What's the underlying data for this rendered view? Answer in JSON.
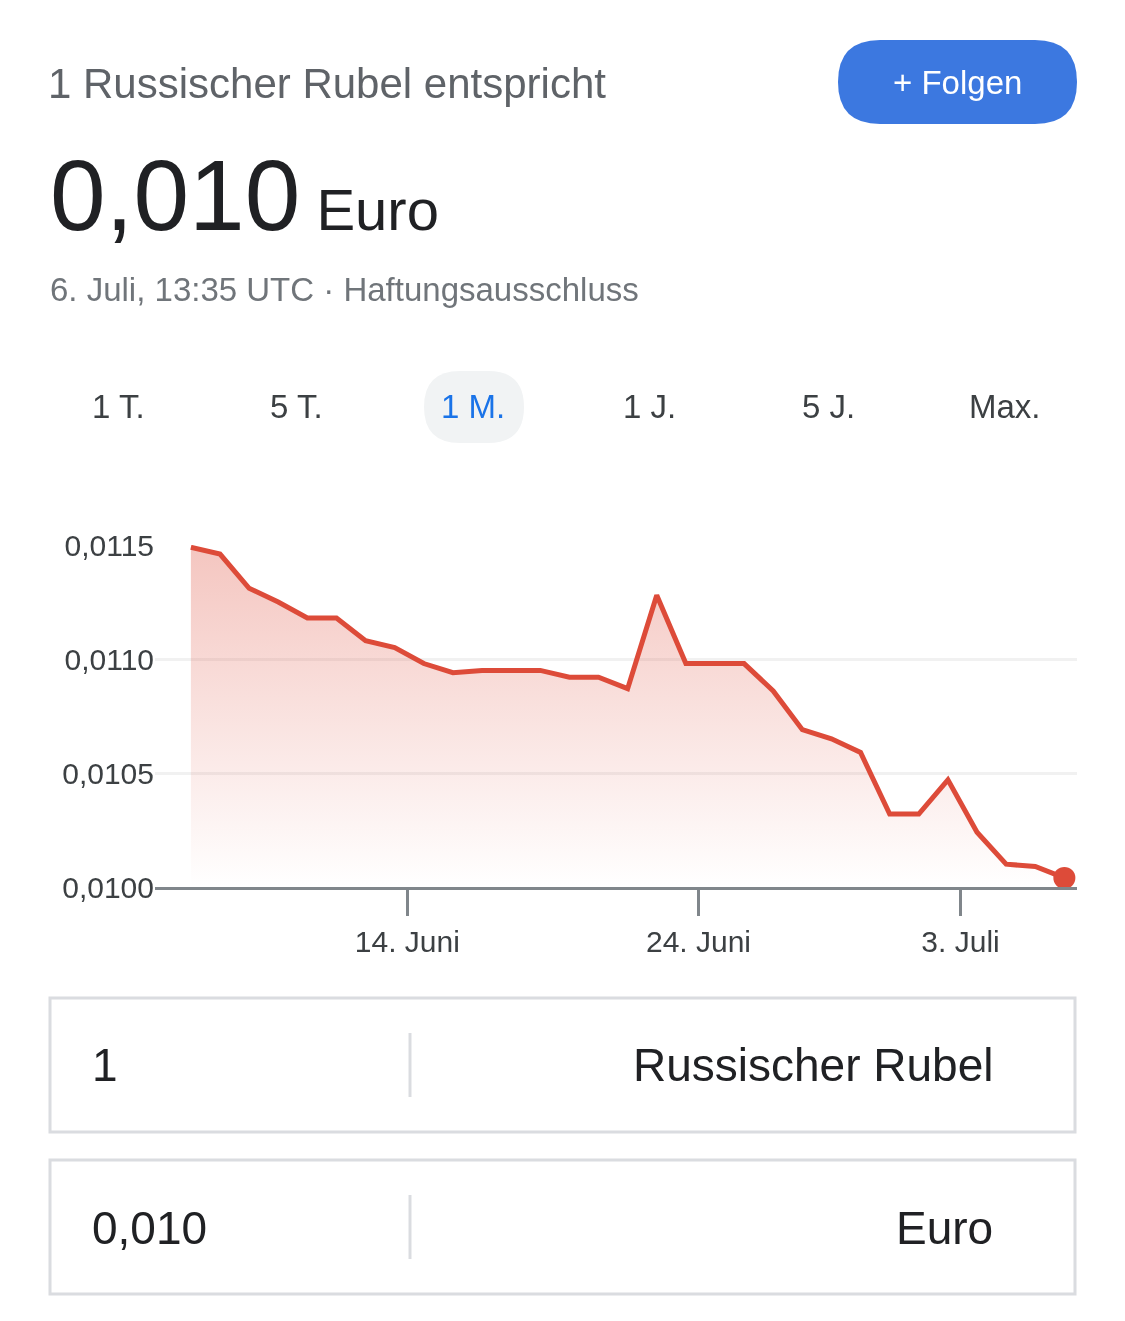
{
  "chart_data": {
    "type": "area",
    "title": "1 Russischer Rubel entspricht",
    "subtitle": "0,010 Euro",
    "annotations": [
      "6. Juli, 13:35 UTC · Haftungsausschluss",
      "+ Folgen",
      "1 T.",
      "5 T.",
      "1 M.",
      "1 J.",
      "5 J.",
      "Max.",
      "1",
      "Russischer Rubel",
      "0,010",
      "Euro"
    ],
    "x": [
      "--06-06T13:35",
      "--06-07T13:35",
      "--06-08T13:35",
      "--06-09T13:35",
      "--06-10T13:35",
      "--06-11T13:35",
      "--06-12T13:35",
      "--06-13T13:35",
      "--06-14T13:35",
      "--06-15T13:35",
      "--06-16T13:35",
      "--06-17T13:35",
      "--06-18T13:35",
      "--06-19T13:35",
      "--06-20T13:35",
      "--06-21T13:35",
      "--06-22T13:35",
      "--06-23T13:35",
      "--06-24T13:35",
      "--06-25T13:35",
      "--06-26T13:35",
      "--06-27T13:35",
      "--06-28T13:35",
      "--06-29T13:35",
      "--06-30T13:35",
      "--07-01T13:35",
      "--07-02T13:35",
      "--07-03T13:35",
      "--07-04T13:35",
      "--07-05T13:35",
      "--07-06T13:35"
    ],
    "series": [
      {
        "color": "#dd4b39",
        "values": [
          0.01149,
          0.01146,
          0.01131,
          0.01125,
          0.01118,
          0.01118,
          0.01108,
          0.01105,
          0.01098,
          0.01094,
          0.01095,
          0.01095,
          0.01095,
          0.01092,
          0.01092,
          0.01087,
          0.01128,
          0.01098,
          0.01098,
          0.01098,
          0.01086,
          0.01069,
          0.01065,
          0.01059,
          0.01032,
          0.01032,
          0.01047,
          0.01024,
          0.0101,
          0.01009,
          0.01004
        ]
      },
      {
        "type": "scatter",
        "color": "#dd4b39",
        "x": [
          "--07-06T13:35"
        ],
        "values": [
          0.01004
        ]
      }
    ],
    "xlim": [
      "--06-05T08:00",
      "--07-07T00:00"
    ],
    "xticks": [
      {
        "value": "--06-14",
        "label": "14. Juni"
      },
      {
        "value": "--06-24",
        "label": "24. Juni"
      },
      {
        "value": "--07-03",
        "label": "3. Juli"
      }
    ],
    "ylim": [
      0.01,
      0.0115
    ],
    "yticks": [
      {
        "value": 0.01,
        "label": "0,0100"
      },
      {
        "value": 0.0105,
        "label": "0,0105"
      },
      {
        "value": 0.011,
        "label": "0,0110"
      },
      {
        "value": 0.0115,
        "label": "0,0115"
      }
    ],
    "grid": "y"
  }
}
